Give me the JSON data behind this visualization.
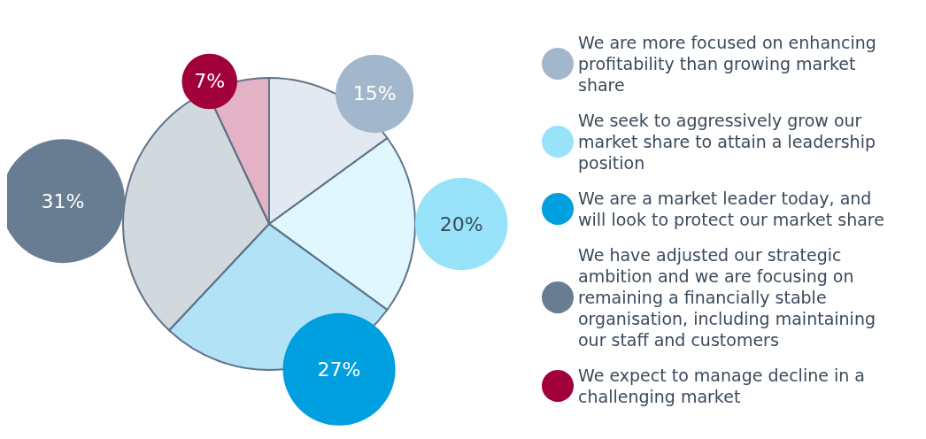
{
  "chart_data": {
    "type": "pie",
    "categories": [
      "We are more focused on enhancing profitability than growing market share",
      "We seek to aggressively grow our market share to attain a leadership position",
      "We are a market leader today, and will look to protect our market share",
      "We have adjusted our strategic ambition and we are focusing on remaining a financially stable organisation, including maintaining our staff and customers",
      "We expect to manage decline in a challenging market"
    ],
    "values": [
      15,
      20,
      27,
      31,
      7
    ],
    "value_labels": [
      "15%",
      "20%",
      "27%",
      "31%",
      "7%"
    ],
    "colors": [
      "#a3b7cc",
      "#99e3fa",
      "#009fdf",
      "#687d92",
      "#a1003a"
    ],
    "legend": "right"
  }
}
